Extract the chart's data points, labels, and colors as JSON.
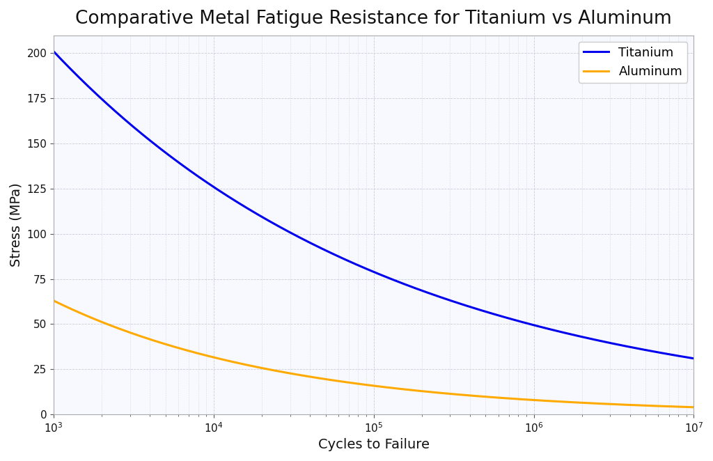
{
  "title": "Comparative Metal Fatigue Resistance for Titanium vs Aluminum",
  "xlabel": "Cycles to Failure",
  "ylabel": "Stress (MPa)",
  "xlim": [
    1000,
    10000000
  ],
  "ylim": [
    0,
    210
  ],
  "titanium_color": "#0000ee",
  "aluminum_color": "#ffaa00",
  "titanium_label": "Titanium",
  "aluminum_label": "Aluminum",
  "line_width": 2.2,
  "title_fontsize": 19,
  "axis_label_fontsize": 14,
  "tick_fontsize": 11,
  "legend_fontsize": 13,
  "background_color": "#f8f9ff",
  "grid_color": "#c8ccd8",
  "ti_N1": 1000,
  "ti_S1": 201,
  "ti_N2": 10000000,
  "ti_S2": 31,
  "al_N1": 1000,
  "al_S1": 63,
  "al_N2": 10000000,
  "al_S2": 4,
  "yticks": [
    0,
    25,
    50,
    75,
    100,
    125,
    150,
    175,
    200
  ]
}
